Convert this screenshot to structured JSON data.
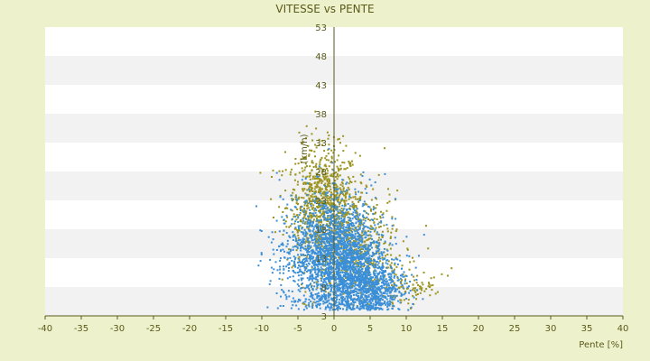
{
  "chart_data": {
    "type": "scatter",
    "title": "VITESSE vs PENTE",
    "xlabel": "Pente [%]",
    "ylabel": "",
    "ylabel_partial": "(km/h)",
    "xlim": [
      -40,
      40
    ],
    "ylim": [
      3,
      53
    ],
    "xticks": [
      "-40",
      "-35",
      "-30",
      "-25",
      "-20",
      "-15",
      "-10",
      "-5",
      "0",
      "5",
      "10",
      "15",
      "20",
      "25",
      "30",
      "35",
      "40"
    ],
    "yticks": [
      "3",
      "8",
      "13",
      "18",
      "23",
      "28",
      "33",
      "38",
      "43",
      "48",
      "53"
    ],
    "grid": "horizontal-bands",
    "colors": {
      "plot_background": "#ffffff",
      "band_alternate": "#f2f2f2",
      "series_blue": "#3a8fd8",
      "series_olive": "#9c9420",
      "axis": "#5a5a1a",
      "page_background": "#eef2cc"
    },
    "series": [
      {
        "name": "",
        "color": "#9c9420",
        "description_hint": "olive points, higher speeds",
        "clusters": [
          {
            "cx": -1.5,
            "cy": 22,
            "sx": 2.5,
            "sy": 5,
            "n": 900
          },
          {
            "cx": 3,
            "cy": 15,
            "sx": 3,
            "sy": 5,
            "n": 500
          },
          {
            "cx": 9,
            "cy": 8,
            "sx": 3,
            "sy": 2,
            "n": 120
          }
        ]
      },
      {
        "name": "",
        "color": "#3a8fd8",
        "description_hint": "blue points, lower speeds",
        "clusters": [
          {
            "cx": 1,
            "cy": 13,
            "sx": 3,
            "sy": 5,
            "n": 1800
          },
          {
            "cx": 5,
            "cy": 8,
            "sx": 2.5,
            "sy": 2.5,
            "n": 700
          },
          {
            "cx": -3,
            "cy": 14,
            "sx": 3,
            "sy": 5,
            "n": 500
          }
        ]
      }
    ]
  }
}
